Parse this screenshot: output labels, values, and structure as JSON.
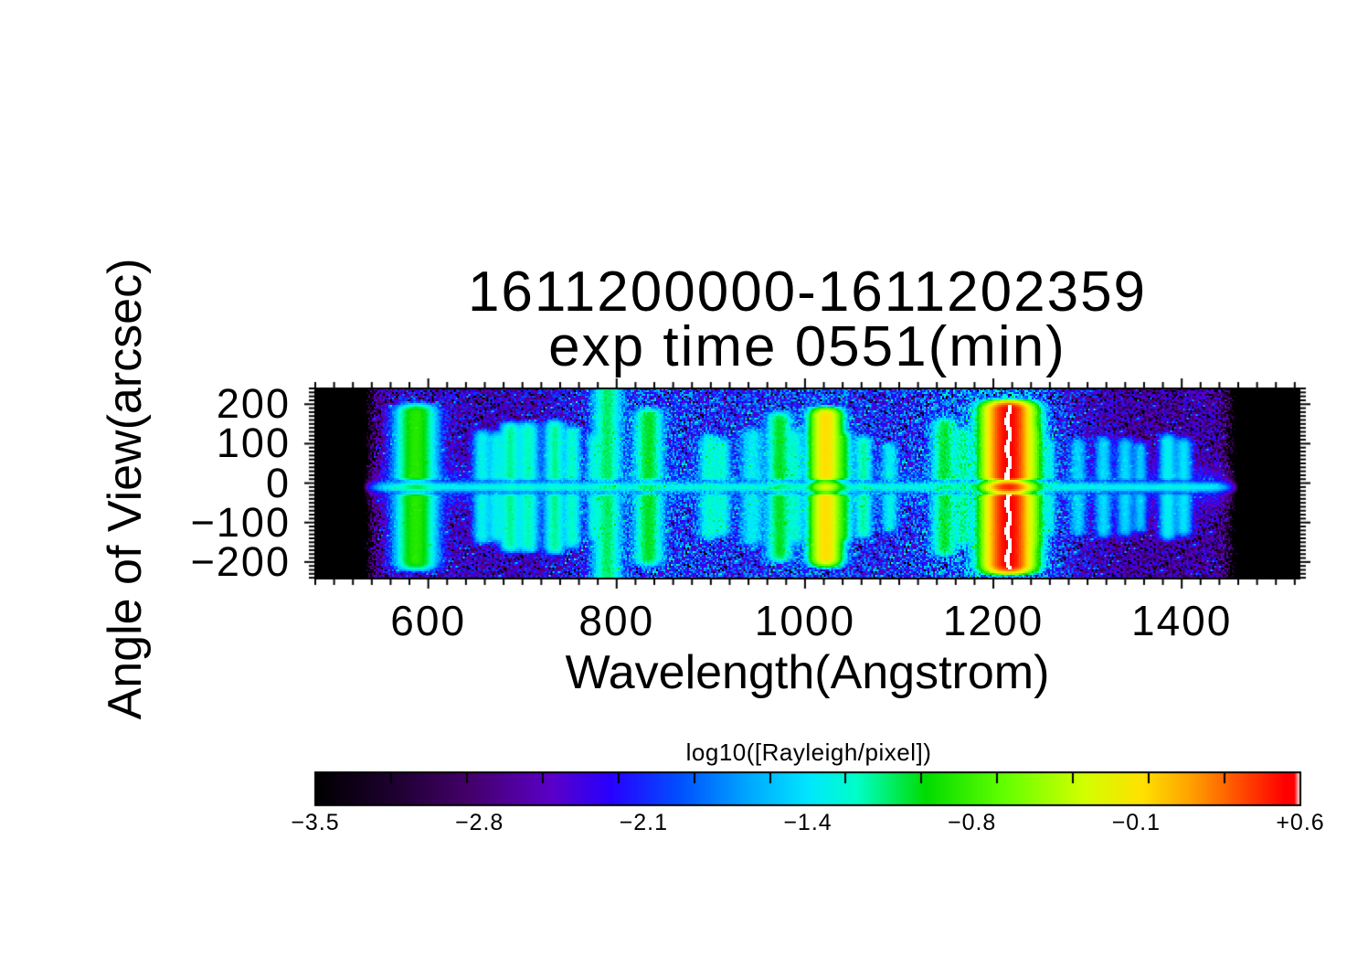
{
  "chart_data": {
    "type": "heatmap",
    "title_line1": "1611200000-1611202359",
    "title_line2": "exp time 0551(min)",
    "xlabel": "Wavelength(Angstrom)",
    "ylabel": "Angle of View(arcsec)",
    "xlim": [
      480,
      1525
    ],
    "ylim": [
      -242,
      240
    ],
    "x_ticks": [
      600,
      800,
      1000,
      1200,
      1400
    ],
    "x_tick_labels": [
      "600",
      "800",
      "1000",
      "1200",
      "1400"
    ],
    "x_minor_step": 20,
    "y_ticks": [
      200,
      100,
      0,
      -100,
      -200
    ],
    "y_tick_labels": [
      "200",
      "100",
      "0",
      "−100",
      "−200"
    ],
    "y_minor_step": 10,
    "detector_x_range": [
      533,
      1462
    ],
    "background_log": -2.55,
    "noise_amplitude": 1.0,
    "center_offset_arcsec": -10,
    "center_line": {
      "log": -1.5,
      "sigma_arcsec": 7
    },
    "center_band": {
      "log": -2.35,
      "sigma_arcsec": 28
    },
    "colorbar": {
      "label": "log10([Rayleigh/pixel])",
      "min": -3.5,
      "max": 0.6,
      "tick_labels": [
        "−3.5",
        "−2.8",
        "−2.1",
        "−1.4",
        "−0.8",
        "−0.1",
        "+0.6"
      ],
      "gradient_stops": [
        [
          0.0,
          "#000000"
        ],
        [
          0.08,
          "#1e0030"
        ],
        [
          0.16,
          "#46006e"
        ],
        [
          0.24,
          "#5a00c8"
        ],
        [
          0.3,
          "#2800ff"
        ],
        [
          0.37,
          "#0050ff"
        ],
        [
          0.44,
          "#00a8ff"
        ],
        [
          0.5,
          "#00e6ff"
        ],
        [
          0.55,
          "#00ffc8"
        ],
        [
          0.62,
          "#00dc00"
        ],
        [
          0.7,
          "#64ff00"
        ],
        [
          0.78,
          "#d2ff00"
        ],
        [
          0.84,
          "#ffe100"
        ],
        [
          0.89,
          "#ffa000"
        ],
        [
          0.94,
          "#ff4b00"
        ],
        [
          0.985,
          "#ff0000"
        ],
        [
          0.994,
          "#ff0000"
        ],
        [
          1.0,
          "#ffffff"
        ]
      ]
    },
    "emission_lines": [
      {
        "wavelength": 587,
        "sigma": 11,
        "log": -0.85,
        "extent": 215,
        "waist": 0.3
      },
      {
        "wavelength": 657,
        "sigma": 5,
        "log": -1.4,
        "extent": 150,
        "waist": 0.2
      },
      {
        "wavelength": 672,
        "sigma": 5,
        "log": -1.45,
        "extent": 145,
        "waist": 0.2
      },
      {
        "wavelength": 687,
        "sigma": 6,
        "log": -1.2,
        "extent": 170,
        "waist": 0.25
      },
      {
        "wavelength": 706,
        "sigma": 6,
        "log": -1.25,
        "extent": 170,
        "waist": 0.25
      },
      {
        "wavelength": 734,
        "sigma": 6,
        "log": -1.2,
        "extent": 175,
        "waist": 0.25
      },
      {
        "wavelength": 753,
        "sigma": 5,
        "log": -1.3,
        "extent": 160,
        "waist": 0.25
      },
      {
        "wavelength": 775,
        "sigma": 4,
        "log": -1.6,
        "extent": 140,
        "waist": 0.2
      },
      {
        "wavelength": 790,
        "sigma": 8,
        "log": -1.15,
        "extent": 265,
        "waist": 0.3
      },
      {
        "wavelength": 834,
        "sigma": 8,
        "log": -1.05,
        "extent": 205,
        "waist": 0.35
      },
      {
        "wavelength": 898,
        "sigma": 6,
        "log": -1.35,
        "extent": 140,
        "waist": 0.25
      },
      {
        "wavelength": 912,
        "sigma": 5,
        "log": -1.4,
        "extent": 130,
        "waist": 0.25
      },
      {
        "wavelength": 944,
        "sigma": 7,
        "log": -1.5,
        "extent": 155,
        "waist": 0.25
      },
      {
        "wavelength": 973,
        "sigma": 7,
        "log": -1.05,
        "extent": 195,
        "waist": 0.35
      },
      {
        "wavelength": 990,
        "sigma": 5,
        "log": -1.45,
        "extent": 150,
        "waist": 0.25
      },
      {
        "wavelength": 1022,
        "sigma": 8,
        "log": -0.05,
        "extent": 205,
        "waist": 0.55
      },
      {
        "wavelength": 1041,
        "sigma": 5,
        "log": -1.15,
        "extent": 145,
        "waist": 0.3
      },
      {
        "wavelength": 1062,
        "sigma": 5,
        "log": -1.25,
        "extent": 135,
        "waist": 0.25
      },
      {
        "wavelength": 1090,
        "sigma": 5,
        "log": -1.45,
        "extent": 120,
        "waist": 0.2
      },
      {
        "wavelength": 1148,
        "sigma": 7,
        "log": -1.1,
        "extent": 180,
        "waist": 0.35
      },
      {
        "wavelength": 1168,
        "sigma": 5,
        "log": -1.3,
        "extent": 155,
        "waist": 0.3
      },
      {
        "wavelength": 1216,
        "sigma": 12,
        "log": 0.55,
        "extent": 222,
        "waist": 0.8,
        "core": true
      },
      {
        "wavelength": 1244,
        "sigma": 5,
        "log": -1.2,
        "extent": 160,
        "waist": 0.3
      },
      {
        "wavelength": 1260,
        "sigma": 4,
        "log": -1.6,
        "extent": 130,
        "waist": 0.2
      },
      {
        "wavelength": 1290,
        "sigma": 5,
        "log": -1.6,
        "extent": 130,
        "waist": 0.2
      },
      {
        "wavelength": 1317,
        "sigma": 5,
        "log": -1.55,
        "extent": 135,
        "waist": 0.2
      },
      {
        "wavelength": 1340,
        "sigma": 5,
        "log": -1.55,
        "extent": 130,
        "waist": 0.2
      },
      {
        "wavelength": 1356,
        "sigma": 4,
        "log": -1.6,
        "extent": 120,
        "waist": 0.2
      },
      {
        "wavelength": 1385,
        "sigma": 5,
        "log": -1.4,
        "extent": 140,
        "waist": 0.25
      },
      {
        "wavelength": 1402,
        "sigma": 5,
        "log": -1.5,
        "extent": 130,
        "waist": 0.25
      }
    ],
    "scatter_bands": [
      {
        "wavelength": 587,
        "sigma": 30,
        "boost": 0.15
      },
      {
        "wavelength": 790,
        "sigma": 45,
        "boost": 0.25
      },
      {
        "wavelength": 840,
        "sigma": 50,
        "boost": 0.25
      },
      {
        "wavelength": 930,
        "sigma": 60,
        "boost": 0.3
      },
      {
        "wavelength": 1022,
        "sigma": 45,
        "boost": 0.4
      },
      {
        "wavelength": 1150,
        "sigma": 55,
        "boost": 0.4
      },
      {
        "wavelength": 1216,
        "sigma": 50,
        "boost": 0.45
      },
      {
        "wavelength": 1250,
        "sigma": 40,
        "boost": 0.25
      },
      {
        "wavelength": 1360,
        "sigma": 70,
        "boost": -0.15
      }
    ]
  }
}
